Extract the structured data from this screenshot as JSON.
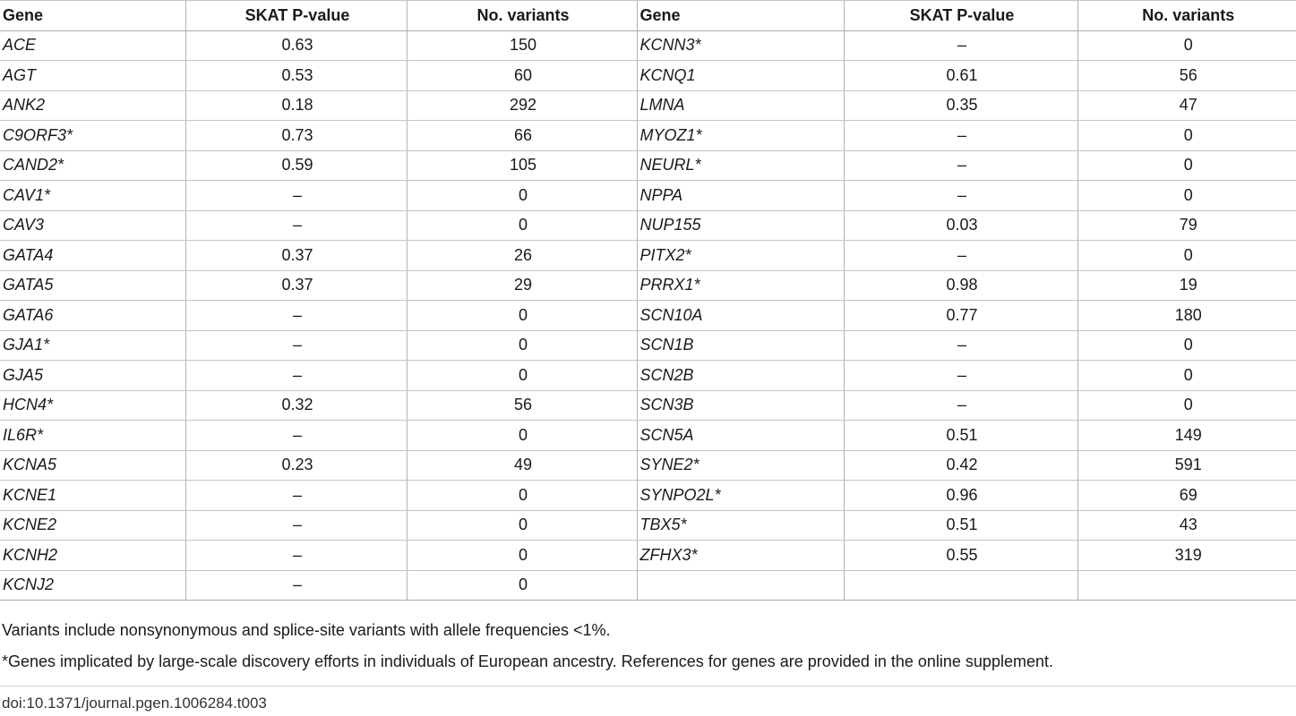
{
  "headers": [
    "Gene",
    "SKAT P-value",
    "No. variants",
    "Gene",
    "SKAT P-value",
    "No. variants"
  ],
  "rows": [
    [
      "ACE",
      "0.63",
      "150",
      "KCNN3*",
      "–",
      "0"
    ],
    [
      "AGT",
      "0.53",
      "60",
      "KCNQ1",
      "0.61",
      "56"
    ],
    [
      "ANK2",
      "0.18",
      "292",
      "LMNA",
      "0.35",
      "47"
    ],
    [
      "C9ORF3*",
      "0.73",
      "66",
      "MYOZ1*",
      "–",
      "0"
    ],
    [
      "CAND2*",
      "0.59",
      "105",
      "NEURL*",
      "–",
      "0"
    ],
    [
      "CAV1*",
      "–",
      "0",
      "NPPA",
      "–",
      "0"
    ],
    [
      "CAV3",
      "–",
      "0",
      "NUP155",
      "0.03",
      "79"
    ],
    [
      "GATA4",
      "0.37",
      "26",
      "PITX2*",
      "–",
      "0"
    ],
    [
      "GATA5",
      "0.37",
      "29",
      "PRRX1*",
      "0.98",
      "19"
    ],
    [
      "GATA6",
      "–",
      "0",
      "SCN10A",
      "0.77",
      "180"
    ],
    [
      "GJA1*",
      "–",
      "0",
      "SCN1B",
      "–",
      "0"
    ],
    [
      "GJA5",
      "–",
      "0",
      "SCN2B",
      "–",
      "0"
    ],
    [
      "HCN4*",
      "0.32",
      "56",
      "SCN3B",
      "–",
      "0"
    ],
    [
      "IL6R*",
      "–",
      "0",
      "SCN5A",
      "0.51",
      "149"
    ],
    [
      "KCNA5",
      "0.23",
      "49",
      "SYNE2*",
      "0.42",
      "591"
    ],
    [
      "KCNE1",
      "–",
      "0",
      "SYNPO2L*",
      "0.96",
      "69"
    ],
    [
      "KCNE2",
      "–",
      "0",
      "TBX5*",
      "0.51",
      "43"
    ],
    [
      "KCNH2",
      "–",
      "0",
      "ZFHX3*",
      "0.55",
      "319"
    ],
    [
      "KCNJ2",
      "–",
      "0",
      "",
      "",
      ""
    ]
  ],
  "footnotes": [
    "Variants include nonsynonymous and splice-site variants with allele frequencies <1%.",
    "*Genes implicated by large-scale discovery efforts in individuals of European ancestry. References for genes are provided in the online supplement."
  ],
  "doi": "doi:10.1371/journal.pgen.1006284.t003"
}
